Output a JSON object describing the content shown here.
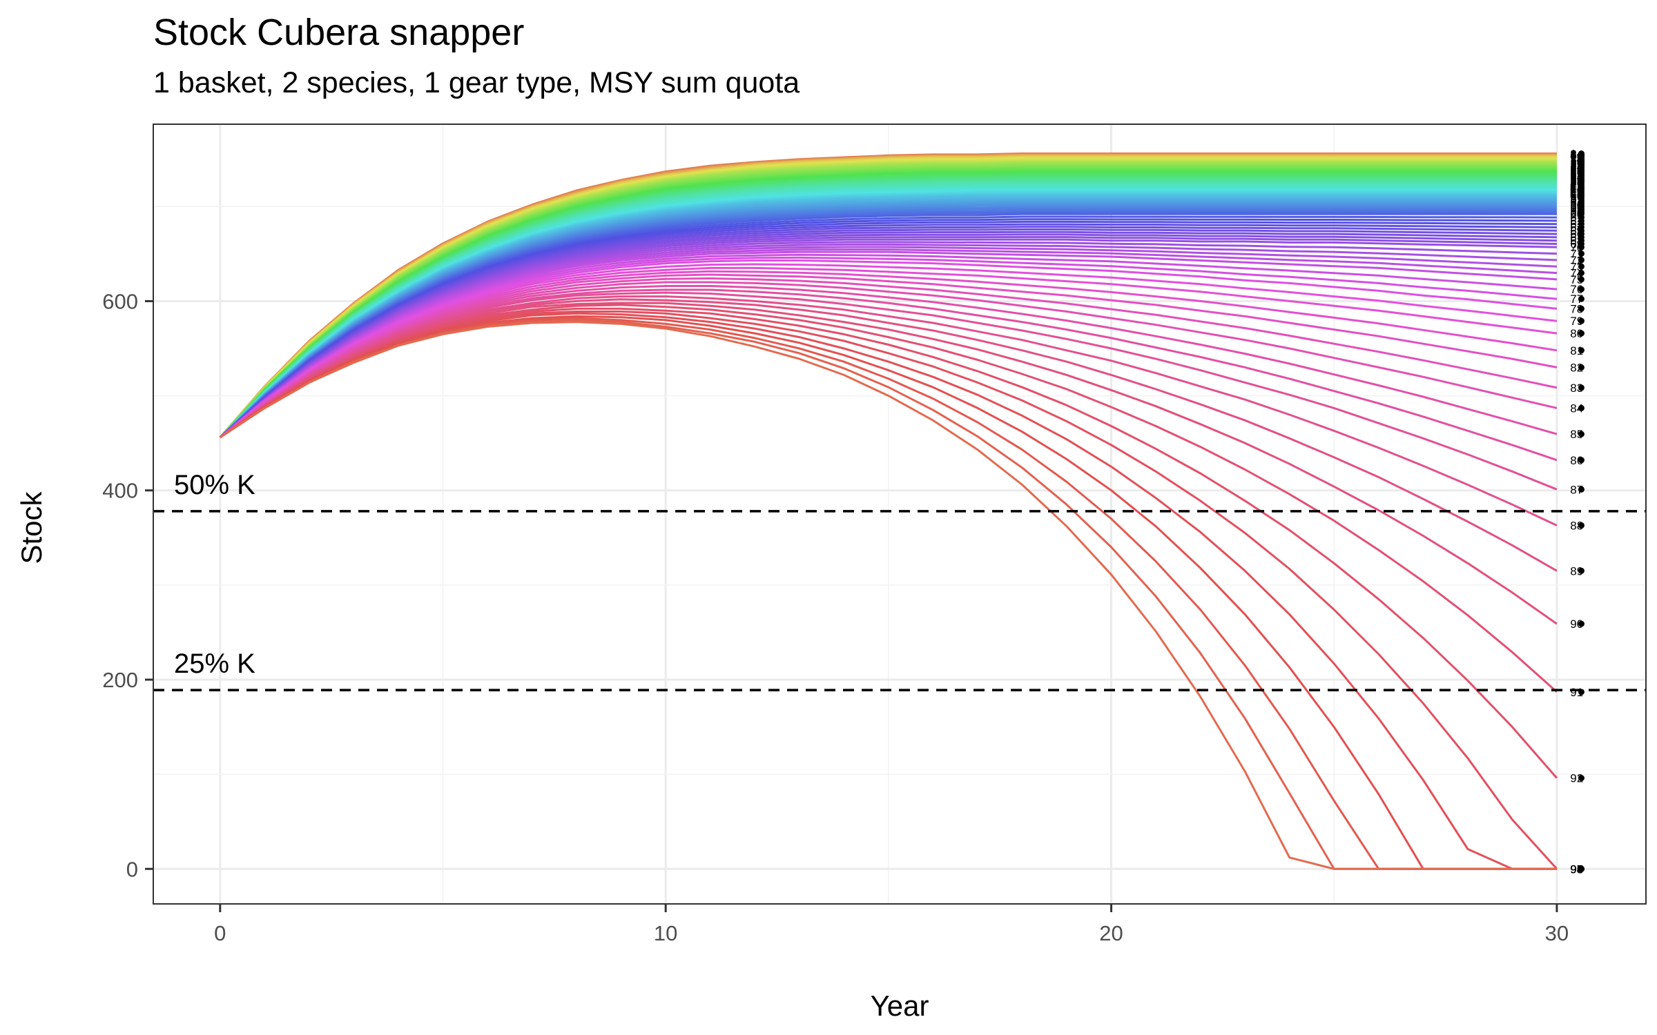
{
  "chart_data": {
    "type": "line",
    "title": "Stock Cubera snapper",
    "subtitle": "1 basket, 2 species, 1 gear type, MSY sum quota",
    "xlabel": "Year",
    "ylabel": "Stock",
    "xlim": [
      -1.5,
      32
    ],
    "ylim": [
      -37,
      787
    ],
    "x_ticks": [
      0,
      10,
      20,
      30
    ],
    "y_ticks": [
      0,
      200,
      400,
      600
    ],
    "grid": true,
    "legend": "none",
    "x": [
      0,
      1,
      2,
      3,
      4,
      5,
      6,
      7,
      8,
      9,
      10,
      11,
      12,
      13,
      14,
      15,
      16,
      17,
      18,
      19,
      20,
      21,
      22,
      23,
      24,
      25,
      26,
      27,
      28,
      29,
      30
    ],
    "reference_lines": [
      {
        "label": "50% K",
        "y": 378
      },
      {
        "label": "25% K",
        "y": 189
      }
    ],
    "series_count": 98,
    "end_labels": [
      "1",
      "2",
      "3",
      "4",
      "5",
      "6",
      "7",
      "8",
      "9",
      "10",
      "11",
      "12",
      "13",
      "14",
      "15",
      "16",
      "17",
      "18",
      "19",
      "20",
      "21",
      "22",
      "23",
      "24",
      "25",
      "26",
      "27",
      "28",
      "29",
      "30",
      "31",
      "32",
      "33",
      "34",
      "35",
      "36",
      "37",
      "38",
      "39",
      "40",
      "41",
      "42",
      "43",
      "44",
      "45",
      "46",
      "47",
      "48",
      "49",
      "50",
      "51",
      "52",
      "53",
      "54",
      "55",
      "56",
      "57",
      "58",
      "59",
      "60",
      "61",
      "62",
      "63",
      "64",
      "65",
      "66",
      "67",
      "68",
      "69",
      "70",
      "71",
      "72",
      "73",
      "74",
      "75",
      "76",
      "77",
      "78",
      "79",
      "80",
      "81",
      "82",
      "83",
      "84",
      "85",
      "86",
      "87",
      "88",
      "89",
      "90",
      "91",
      "92",
      "93",
      "94",
      "95",
      "96",
      "97",
      "98"
    ],
    "series": [
      {
        "name": "1",
        "values": [
          456,
          510,
          558,
          598,
          633,
          661,
          684,
          702,
          717,
          728,
          737,
          743,
          747,
          750,
          752,
          754,
          755,
          755,
          756,
          756,
          756,
          756,
          756,
          756,
          756,
          756,
          756,
          756,
          756,
          756,
          756
        ]
      },
      {
        "name": "10",
        "values": [
          456,
          509,
          556,
          596,
          630,
          658,
          681,
          699,
          713,
          725,
          733,
          739,
          744,
          747,
          749,
          751,
          752,
          752,
          753,
          753,
          753,
          753,
          753,
          753,
          753,
          753,
          753,
          753,
          753,
          753,
          753
        ]
      },
      {
        "name": "20",
        "values": [
          456,
          508,
          553,
          592,
          626,
          653,
          675,
          693,
          707,
          718,
          727,
          733,
          737,
          740,
          742,
          744,
          745,
          745,
          746,
          746,
          746,
          746,
          746,
          746,
          746,
          746,
          746,
          746,
          746,
          746,
          746
        ]
      },
      {
        "name": "30",
        "values": [
          456,
          506,
          550,
          588,
          620,
          646,
          668,
          685,
          699,
          709,
          718,
          723,
          727,
          730,
          732,
          734,
          735,
          735,
          736,
          736,
          736,
          736,
          736,
          736,
          736,
          736,
          736,
          736,
          736,
          736,
          736
        ]
      },
      {
        "name": "40",
        "values": [
          456,
          504,
          547,
          584,
          614,
          640,
          660,
          677,
          690,
          700,
          708,
          713,
          717,
          720,
          722,
          723,
          724,
          725,
          725,
          725,
          725,
          725,
          725,
          725,
          725,
          725,
          725,
          725,
          725,
          725,
          725
        ]
      },
      {
        "name": "50",
        "values": [
          456,
          502,
          543,
          578,
          607,
          632,
          651,
          667,
          679,
          688,
          695,
          700,
          704,
          706,
          708,
          709,
          710,
          711,
          711,
          711,
          711,
          711,
          711,
          711,
          711,
          711,
          711,
          711,
          711,
          711,
          711
        ]
      },
      {
        "name": "60",
        "values": [
          456,
          499,
          538,
          571,
          598,
          621,
          639,
          653,
          664,
          672,
          678,
          682,
          685,
          687,
          689,
          690,
          691,
          691,
          692,
          692,
          692,
          692,
          692,
          692,
          692,
          692,
          692,
          692,
          692,
          692,
          692
        ]
      },
      {
        "name": "70",
        "values": [
          456,
          496,
          532,
          562,
          588,
          608,
          624,
          637,
          646,
          653,
          658,
          661,
          663,
          664,
          665,
          665,
          665,
          665,
          665,
          665,
          664,
          664,
          663,
          663,
          662,
          662,
          661,
          660,
          659,
          658,
          657
        ]
      },
      {
        "name": "75",
        "values": [
          456,
          495,
          529,
          558,
          582,
          601,
          616,
          628,
          637,
          643,
          647,
          650,
          651,
          652,
          652,
          652,
          651,
          650,
          649,
          648,
          647,
          645,
          643,
          641,
          639,
          637,
          635,
          632,
          629,
          626,
          623
        ]
      },
      {
        "name": "78",
        "values": [
          456,
          494,
          527,
          555,
          578,
          596,
          611,
          622,
          630,
          636,
          640,
          642,
          643,
          643,
          642,
          641,
          640,
          638,
          636,
          634,
          632,
          629,
          626,
          622,
          619,
          615,
          611,
          606,
          602,
          597,
          592
        ]
      },
      {
        "name": "80",
        "values": [
          456,
          493,
          526,
          553,
          575,
          593,
          607,
          618,
          625,
          630,
          633,
          635,
          635,
          634,
          633,
          631,
          629,
          627,
          624,
          621,
          618,
          614,
          610,
          605,
          600,
          595,
          590,
          584,
          578,
          572,
          566
        ]
      },
      {
        "name": "82",
        "values": [
          456,
          492,
          524,
          551,
          572,
          590,
          603,
          613,
          620,
          624,
          627,
          628,
          627,
          626,
          624,
          621,
          618,
          614,
          610,
          606,
          601,
          596,
          590,
          584,
          577,
          570,
          563,
          555,
          547,
          539,
          530
        ]
      },
      {
        "name": "84",
        "values": [
          456,
          491,
          523,
          549,
          569,
          586,
          599,
          608,
          614,
          618,
          620,
          620,
          619,
          617,
          614,
          610,
          606,
          601,
          595,
          589,
          582,
          575,
          567,
          559,
          550,
          540,
          530,
          520,
          509,
          498,
          487
        ]
      },
      {
        "name": "86",
        "values": [
          456,
          491,
          521,
          547,
          567,
          583,
          595,
          603,
          608,
          611,
          612,
          612,
          610,
          607,
          603,
          598,
          592,
          585,
          578,
          570,
          561,
          551,
          541,
          530,
          518,
          505,
          492,
          478,
          463,
          448,
          432
        ]
      },
      {
        "name": "87",
        "values": [
          456,
          490,
          521,
          545,
          566,
          581,
          593,
          601,
          606,
          608,
          609,
          608,
          605,
          602,
          597,
          591,
          585,
          577,
          569,
          560,
          550,
          539,
          527,
          514,
          501,
          487,
          471,
          455,
          438,
          420,
          401
        ]
      },
      {
        "name": "88",
        "values": [
          456,
          490,
          520,
          544,
          564,
          580,
          591,
          598,
          603,
          605,
          605,
          603,
          600,
          596,
          591,
          584,
          577,
          568,
          559,
          548,
          537,
          524,
          510,
          496,
          480,
          463,
          445,
          426,
          406,
          385,
          363
        ]
      },
      {
        "name": "89",
        "values": [
          456,
          490,
          519,
          543,
          563,
          578,
          589,
          596,
          600,
          602,
          601,
          599,
          596,
          591,
          585,
          577,
          569,
          559,
          548,
          536,
          522,
          507,
          491,
          474,
          455,
          435,
          414,
          391,
          367,
          342,
          315
        ]
      },
      {
        "name": "90",
        "values": [
          456,
          489,
          518,
          542,
          561,
          576,
          587,
          594,
          597,
          598,
          598,
          595,
          591,
          585,
          578,
          570,
          560,
          549,
          536,
          522,
          506,
          489,
          470,
          450,
          428,
          404,
          379,
          352,
          323,
          292,
          259
        ]
      },
      {
        "name": "91",
        "values": [
          456,
          489,
          518,
          541,
          560,
          575,
          585,
          591,
          595,
          596,
          594,
          591,
          586,
          580,
          572,
          562,
          551,
          538,
          523,
          507,
          488,
          468,
          446,
          422,
          396,
          368,
          337,
          304,
          268,
          229,
          187
        ]
      },
      {
        "name": "92",
        "values": [
          456,
          489,
          517,
          540,
          559,
          573,
          583,
          589,
          592,
          592,
          590,
          587,
          581,
          574,
          565,
          554,
          541,
          526,
          509,
          490,
          468,
          444,
          418,
          389,
          358,
          323,
          285,
          244,
          199,
          150,
          96
        ]
      },
      {
        "name": "93",
        "values": [
          456,
          488,
          516,
          539,
          558,
          571,
          581,
          587,
          589,
          589,
          587,
          582,
          576,
          568,
          558,
          545,
          531,
          514,
          495,
          473,
          448,
          420,
          389,
          355,
          317,
          274,
          227,
          175,
          117,
          52,
          0
        ]
      },
      {
        "name": "94",
        "values": [
          456,
          488,
          516,
          539,
          556,
          570,
          579,
          585,
          587,
          586,
          583,
          578,
          571,
          562,
          550,
          536,
          520,
          501,
          479,
          454,
          425,
          392,
          356,
          315,
          269,
          217,
          159,
          94,
          21,
          0,
          0
        ]
      },
      {
        "name": "95",
        "values": [
          456,
          488,
          515,
          538,
          555,
          568,
          577,
          582,
          584,
          583,
          580,
          574,
          566,
          556,
          543,
          527,
          509,
          487,
          462,
          433,
          400,
          362,
          318,
          269,
          213,
          150,
          79,
          0,
          0,
          0,
          0
        ]
      },
      {
        "name": "96",
        "values": [
          456,
          487,
          514,
          537,
          554,
          567,
          576,
          580,
          582,
          580,
          576,
          570,
          561,
          550,
          536,
          518,
          497,
          472,
          443,
          409,
          370,
          325,
          274,
          215,
          148,
          72,
          0,
          0,
          0,
          0,
          0
        ]
      },
      {
        "name": "97",
        "values": [
          456,
          487,
          514,
          536,
          553,
          566,
          574,
          578,
          580,
          578,
          573,
          566,
          557,
          545,
          529,
          509,
          485,
          457,
          424,
          385,
          340,
          288,
          228,
          159,
          80,
          0,
          0,
          0,
          0,
          0,
          0
        ]
      },
      {
        "name": "98",
        "values": [
          456,
          487,
          514,
          535,
          553,
          565,
          573,
          577,
          578,
          576,
          571,
          563,
          552,
          539,
          522,
          500,
          474,
          443,
          406,
          362,
          311,
          251,
          182,
          103,
          12,
          0,
          0,
          0,
          0,
          0,
          0
        ]
      }
    ]
  }
}
